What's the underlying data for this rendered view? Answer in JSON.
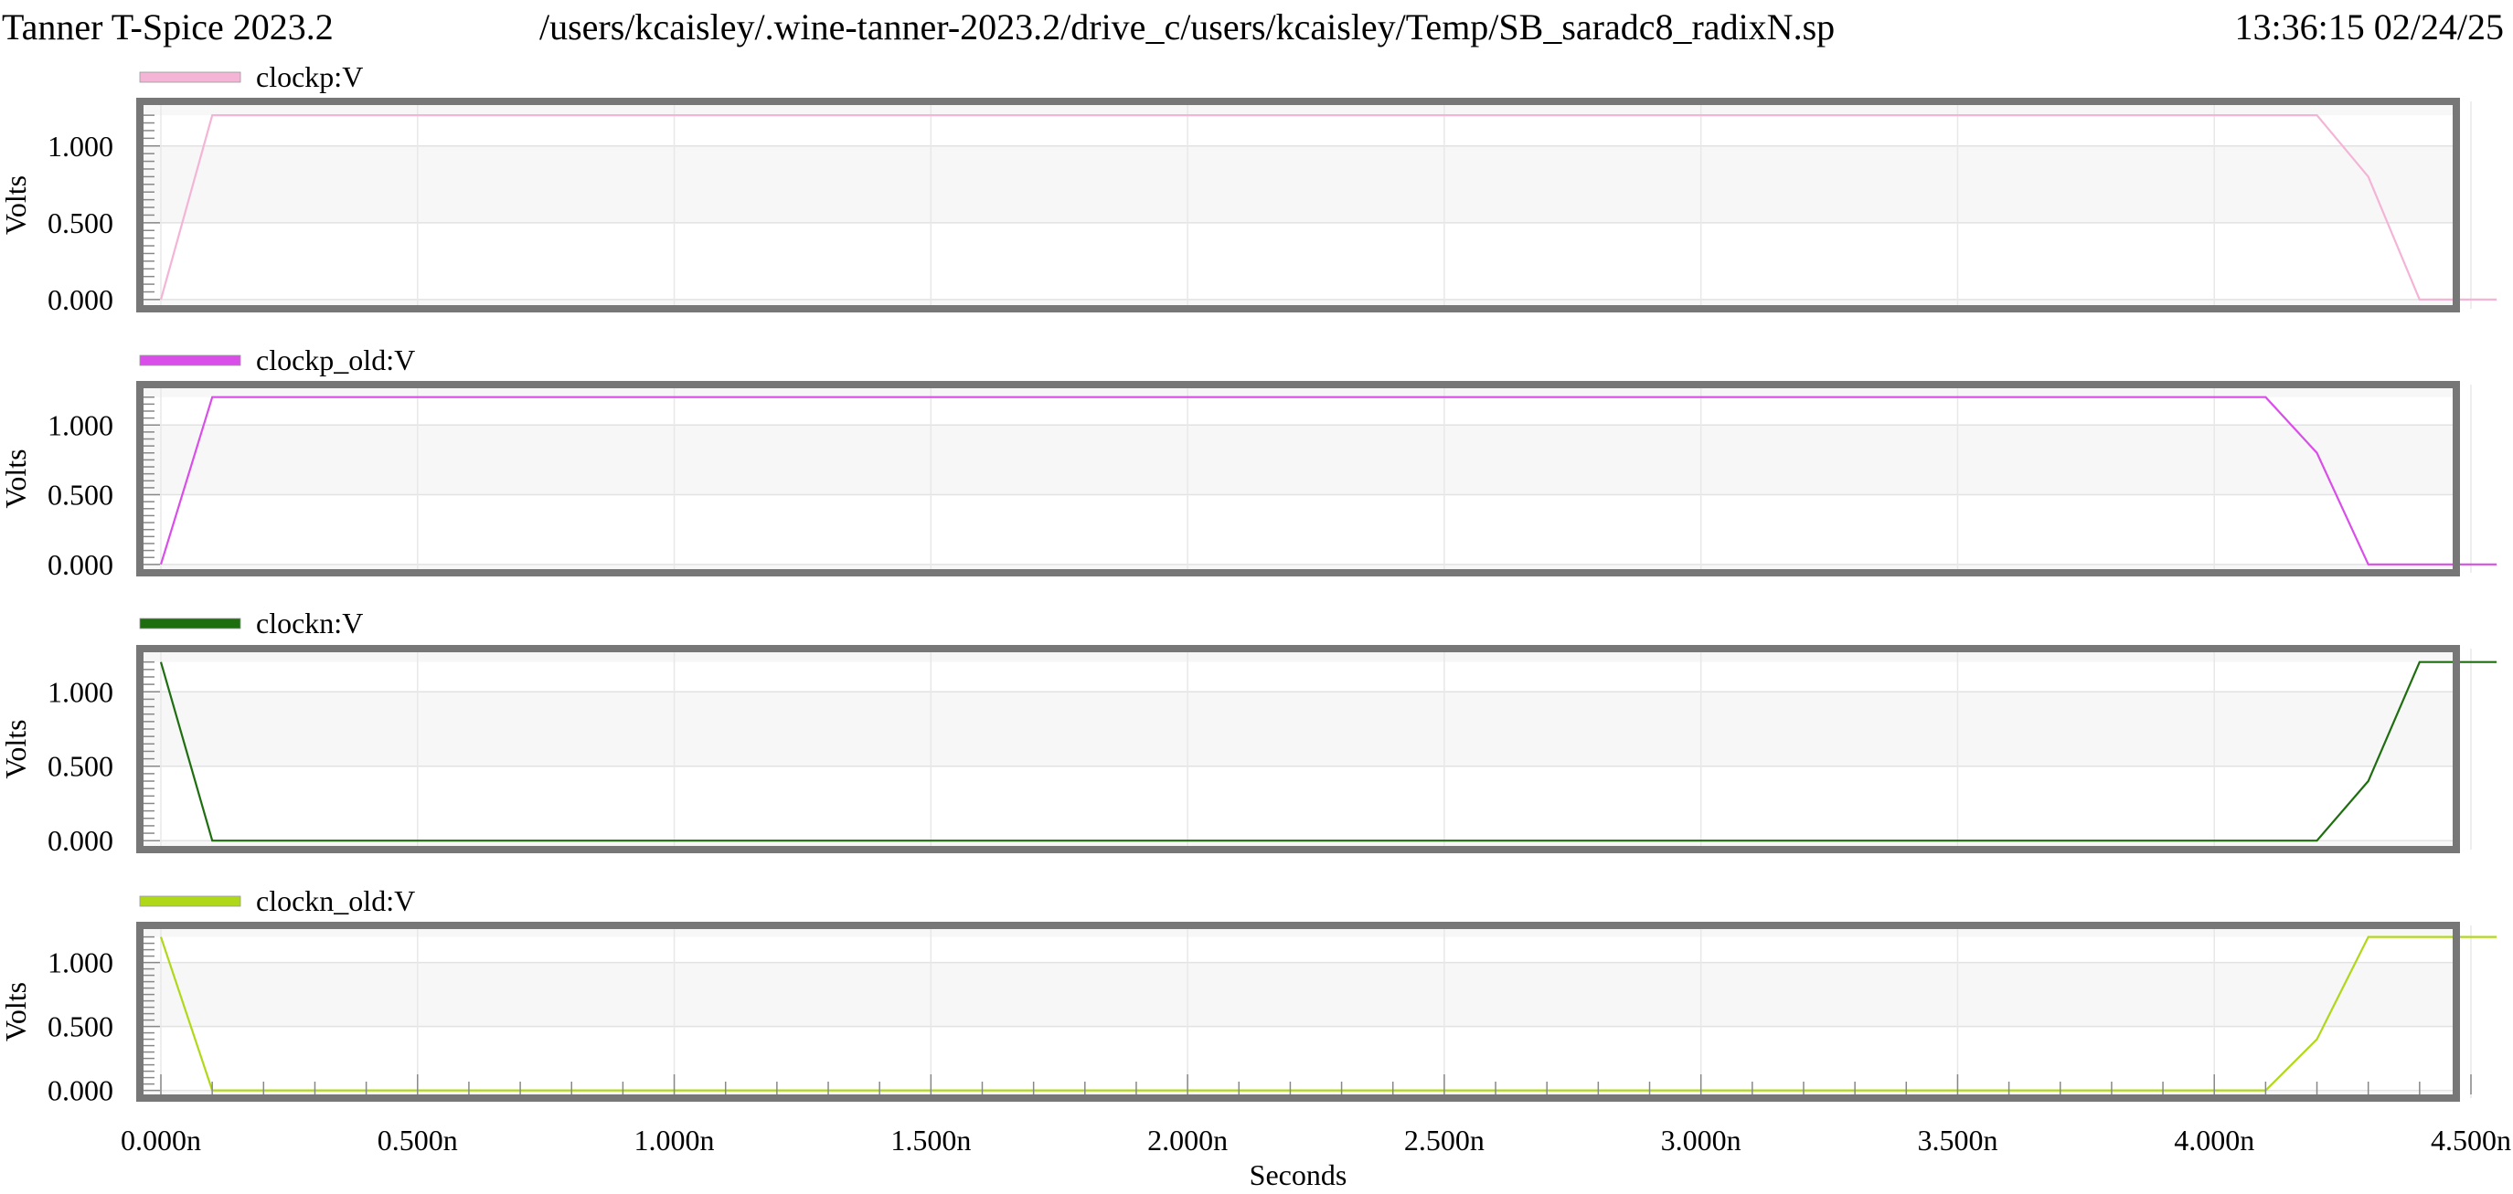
{
  "header": {
    "app_title": "Tanner T-Spice 2023.2",
    "file_path": "/users/kcaisley/.wine-tanner-2023.2/drive_c/users/kcaisley/Temp/SB_saradc8_radixN.sp",
    "timestamp": "13:36:15 02/24/25"
  },
  "chart_data": {
    "type": "line",
    "xlabel": "Seconds",
    "xlim": [
      0,
      4.55
    ],
    "x_ticks": [
      0,
      0.5,
      1.0,
      1.5,
      2.0,
      2.5,
      3.0,
      3.5,
      4.0,
      4.5
    ],
    "x_tick_labels": [
      "0.000n",
      "0.500n",
      "1.000n",
      "1.500n",
      "2.000n",
      "2.500n",
      "3.000n",
      "3.500n",
      "4.000n",
      "4.500n"
    ],
    "y_ticks": [
      0,
      0.5,
      1.0
    ],
    "y_tick_labels": [
      "0.000",
      "0.500",
      "1.000"
    ],
    "grid": true,
    "legend_position": "top-left of each panel",
    "panels": [
      {
        "ylabel": "Volts",
        "ylim": [
          -0.06,
          1.29
        ],
        "series": {
          "name": "clockp:V",
          "color": "#f4b4d6",
          "x": [
            0,
            0.1,
            4.2,
            4.3,
            4.4,
            4.55
          ],
          "y": [
            0,
            1.2,
            1.2,
            0.8,
            0,
            0
          ]
        }
      },
      {
        "ylabel": "Volts",
        "ylim": [
          -0.06,
          1.29
        ],
        "series": {
          "name": "clockp_old:V",
          "color": "#d94ee8",
          "x": [
            0,
            0.1,
            4.1,
            4.2,
            4.3,
            4.55
          ],
          "y": [
            0,
            1.2,
            1.2,
            0.8,
            0,
            0
          ]
        }
      },
      {
        "ylabel": "Volts",
        "ylim": [
          -0.06,
          1.29
        ],
        "series": {
          "name": "clockn:V",
          "color": "#1e6e10",
          "x": [
            0,
            0.1,
            4.2,
            4.3,
            4.4,
            4.55
          ],
          "y": [
            1.2,
            0,
            0,
            0.4,
            1.2,
            1.2
          ]
        }
      },
      {
        "ylabel": "Volts",
        "ylim": [
          -0.06,
          1.29
        ],
        "series": {
          "name": "clockn_old:V",
          "color": "#b0d81a",
          "x": [
            0,
            0.1,
            4.1,
            4.2,
            4.3,
            4.55
          ],
          "y": [
            1.2,
            0,
            0,
            0.4,
            1.2,
            1.2
          ]
        }
      }
    ]
  }
}
